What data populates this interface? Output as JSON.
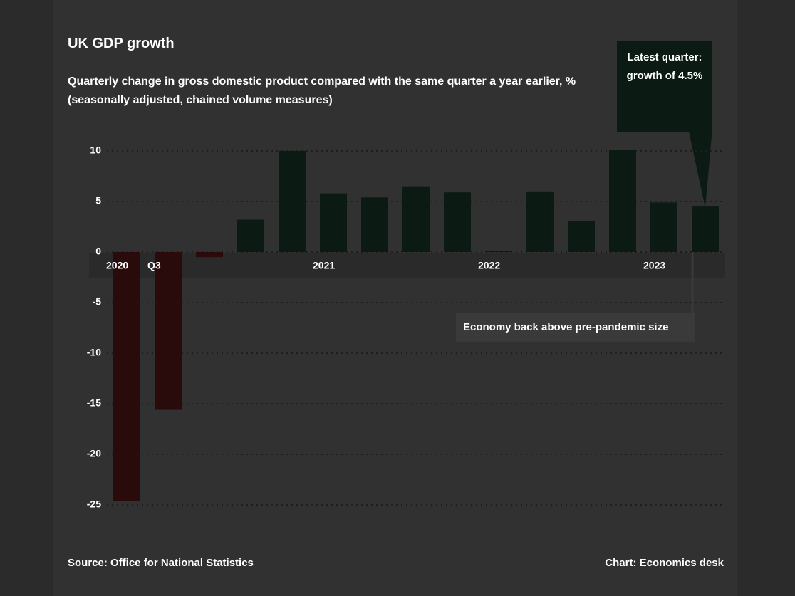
{
  "chart_data": {
    "type": "bar",
    "title": "UK GDP growth",
    "subtitle": "Quarterly change in gross domestic product compared with the same quarter a year earlier, % (seasonally adjusted, chained volume measures)",
    "categories": [
      "2020",
      "Q3",
      null,
      null,
      null,
      "2021",
      null,
      null,
      null,
      "2022",
      null,
      null,
      null,
      "2023",
      null
    ],
    "values": [
      -24.6,
      -15.6,
      -0.5,
      3.2,
      10,
      5.8,
      5.4,
      6.5,
      5.9,
      0.1,
      6,
      3.1,
      10.1,
      4.9,
      4.5
    ],
    "positive_color": "#0b1a12",
    "negative_color": "#2a0b0b",
    "ylim": [
      -25,
      10
    ],
    "yticks": [
      10,
      5,
      0,
      -5,
      -10,
      -15,
      -20,
      -25
    ],
    "grid": true,
    "annotations": [
      "Latest quarter: growth of 4.5%",
      "Economy back above pre-pandemic size"
    ],
    "source": "Source: Office for National Statistics",
    "credit": "Chart: Economics desk"
  }
}
